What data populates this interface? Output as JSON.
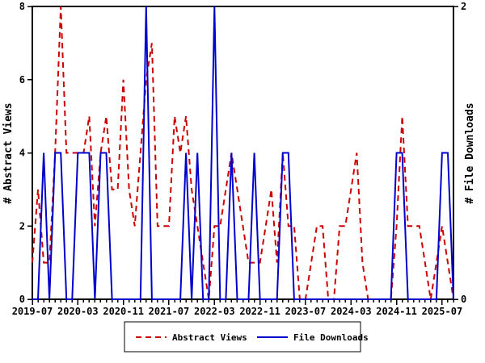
{
  "chart_data": {
    "type": "line",
    "title": "",
    "grid": false,
    "x_start": "2019-07",
    "months": [
      "2019-07",
      "2019-08",
      "2019-09",
      "2019-10",
      "2019-11",
      "2019-12",
      "2020-01",
      "2020-02",
      "2020-03",
      "2020-04",
      "2020-05",
      "2020-06",
      "2020-07",
      "2020-08",
      "2020-09",
      "2020-10",
      "2020-11",
      "2020-12",
      "2021-01",
      "2021-02",
      "2021-03",
      "2021-04",
      "2021-05",
      "2021-06",
      "2021-07",
      "2021-08",
      "2021-09",
      "2021-10",
      "2021-11",
      "2021-12",
      "2022-01",
      "2022-02",
      "2022-03",
      "2022-04",
      "2022-05",
      "2022-06",
      "2022-07",
      "2022-08",
      "2022-09",
      "2022-10",
      "2022-11",
      "2022-12",
      "2023-01",
      "2023-02",
      "2023-03",
      "2023-04",
      "2023-05",
      "2023-06",
      "2023-07",
      "2023-08",
      "2023-09",
      "2023-10",
      "2023-11",
      "2023-12",
      "2024-01",
      "2024-02",
      "2024-03",
      "2024-04",
      "2024-05",
      "2024-06",
      "2024-07",
      "2024-08",
      "2024-09",
      "2024-10",
      "2024-11",
      "2024-12",
      "2025-01",
      "2025-02",
      "2025-03",
      "2025-04",
      "2025-05",
      "2025-06",
      "2025-07",
      "2025-08",
      "2025-09"
    ],
    "series": [
      {
        "name": "Abstract Views",
        "axis": "left",
        "color": "#cc0000",
        "style": "dashed",
        "values": [
          1,
          3,
          1,
          1,
          4,
          8,
          4,
          4,
          4,
          4,
          5,
          2,
          4,
          5,
          3,
          3,
          6,
          3,
          2,
          4,
          6,
          7,
          2,
          2,
          2,
          5,
          4,
          5,
          3,
          2,
          1,
          0,
          2,
          2,
          3,
          4,
          3,
          2,
          1,
          1,
          1,
          2,
          3,
          1,
          4,
          2,
          2,
          0,
          0,
          1,
          2,
          2,
          0,
          0,
          2,
          2,
          3,
          4,
          1,
          0,
          0,
          0,
          0,
          0,
          2,
          5,
          2,
          2,
          2,
          1,
          0,
          1,
          2,
          1,
          0
        ]
      },
      {
        "name": "File Downloads",
        "axis": "right",
        "color": "#0000cc",
        "style": "solid",
        "values": [
          0,
          0,
          1,
          0,
          1,
          1,
          0,
          0,
          1,
          1,
          1,
          0,
          1,
          1,
          0,
          0,
          0,
          0,
          0,
          0,
          2,
          0,
          0,
          0,
          0,
          0,
          0,
          1,
          0,
          1,
          0,
          0,
          2,
          0,
          0,
          1,
          0,
          0,
          0,
          1,
          0,
          0,
          0,
          0,
          1,
          1,
          0,
          0,
          0,
          0,
          0,
          0,
          0,
          0,
          0,
          0,
          0,
          0,
          0,
          0,
          0,
          0,
          0,
          0,
          1,
          1,
          0,
          0,
          0,
          0,
          0,
          0,
          1,
          1,
          0
        ]
      }
    ],
    "y_left": {
      "label": "# Abstract Views",
      "min": 0,
      "max": 8,
      "ticks": [
        0,
        2,
        4,
        6,
        8
      ]
    },
    "y_right": {
      "label": "# File Downloads",
      "min": 0,
      "max": 2,
      "ticks": [
        0,
        2
      ]
    },
    "x_axis": {
      "major_tick_labels": [
        "2019-07",
        "2020-03",
        "2020-11",
        "2021-07",
        "2022-03",
        "2022-11",
        "2023-07",
        "2024-03",
        "2024-11",
        "2025-07"
      ],
      "major_every_months": 8,
      "minor_ticks": "monthly"
    },
    "legend": {
      "position": "bottom-center",
      "entries": [
        "Abstract Views",
        "File Downloads"
      ]
    },
    "colors": {
      "abstract_views": "#cc0000",
      "file_downloads": "#0000cc",
      "axis": "#000000",
      "background": "#ffffff"
    }
  }
}
